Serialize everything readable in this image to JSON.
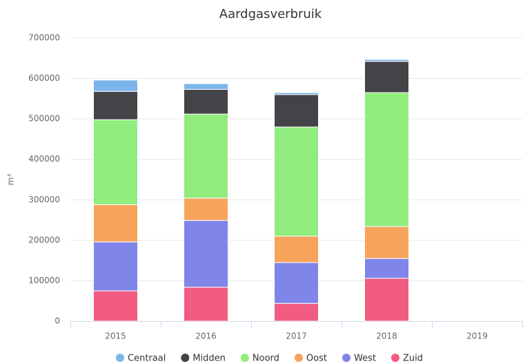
{
  "chart_data": {
    "type": "stacked_bar",
    "title": "Aardgasverbruik",
    "y_label": "m³",
    "categories": [
      "2015",
      "2016",
      "2017",
      "2018",
      "2019"
    ],
    "series": [
      {
        "name": "Centraal",
        "color": "#7cb5ec",
        "values": [
          28000,
          14000,
          5000,
          5000,
          null
        ]
      },
      {
        "name": "Midden",
        "color": "#434348",
        "values": [
          70000,
          61000,
          80000,
          77000,
          null
        ]
      },
      {
        "name": "Noord",
        "color": "#90ed7d",
        "values": [
          210000,
          208000,
          270000,
          331000,
          null
        ]
      },
      {
        "name": "Oost",
        "color": "#f7a35c",
        "values": [
          92000,
          55000,
          65000,
          79000,
          null
        ]
      },
      {
        "name": "West",
        "color": "#8085e9",
        "values": [
          121000,
          165000,
          101000,
          49000,
          null
        ]
      },
      {
        "name": "Zuid",
        "color": "#f15c80",
        "values": [
          75000,
          84000,
          44000,
          106000,
          null
        ]
      }
    ],
    "ylim": [
      0,
      700000
    ],
    "yticks": [
      0,
      100000,
      200000,
      300000,
      400000,
      500000,
      600000,
      700000
    ],
    "grid": true,
    "legend": "bottom"
  }
}
